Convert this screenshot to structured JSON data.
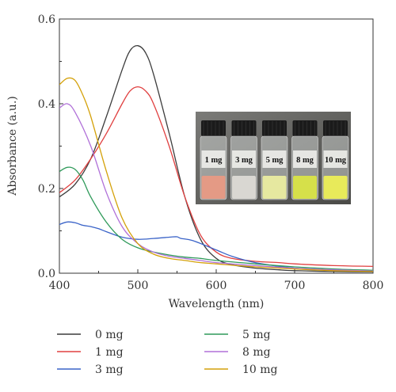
{
  "chart_data": {
    "type": "line",
    "xlabel": "Wavelength (nm)",
    "ylabel": "Absorbance (a.u.)",
    "xlim": [
      400,
      800
    ],
    "ylim": [
      0.0,
      0.6
    ],
    "xticks": [
      "400",
      "500",
      "600",
      "700",
      "800"
    ],
    "yticks": [
      "0.0",
      "0.2",
      "0.4",
      "0.6"
    ],
    "grid": false,
    "legend_position": "bottom",
    "series": [
      {
        "name": "0 mg",
        "color": "#3c3c3c",
        "x": [
          400,
          420,
          440,
          460,
          480,
          490,
          500,
          510,
          520,
          540,
          560,
          580,
          600,
          620,
          650,
          680,
          700,
          750,
          800
        ],
        "y": [
          0.18,
          0.21,
          0.27,
          0.37,
          0.48,
          0.525,
          0.537,
          0.52,
          0.47,
          0.33,
          0.18,
          0.08,
          0.035,
          0.02,
          0.012,
          0.008,
          0.006,
          0.004,
          0.003
        ]
      },
      {
        "name": "1 mg",
        "color": "#e04040",
        "x": [
          400,
          420,
          440,
          460,
          480,
          490,
          500,
          510,
          520,
          540,
          560,
          580,
          600,
          620,
          650,
          680,
          700,
          750,
          800
        ],
        "y": [
          0.19,
          0.22,
          0.27,
          0.33,
          0.4,
          0.43,
          0.44,
          0.43,
          0.4,
          0.3,
          0.18,
          0.09,
          0.05,
          0.035,
          0.028,
          0.025,
          0.022,
          0.018,
          0.016
        ]
      },
      {
        "name": "3 mg",
        "color": "#3a63c8",
        "x": [
          400,
          410,
          420,
          430,
          440,
          450,
          460,
          480,
          500,
          520,
          540,
          550,
          555,
          570,
          600,
          620,
          650,
          700,
          750,
          800
        ],
        "y": [
          0.115,
          0.121,
          0.119,
          0.113,
          0.11,
          0.105,
          0.098,
          0.085,
          0.08,
          0.082,
          0.085,
          0.086,
          0.082,
          0.077,
          0.055,
          0.04,
          0.025,
          0.012,
          0.007,
          0.004
        ]
      },
      {
        "name": "5 mg",
        "color": "#2f9a5a",
        "x": [
          400,
          410,
          420,
          430,
          440,
          460,
          480,
          500,
          520,
          540,
          560,
          580,
          600,
          650,
          700,
          750,
          800
        ],
        "y": [
          0.24,
          0.25,
          0.245,
          0.22,
          0.18,
          0.12,
          0.08,
          0.06,
          0.05,
          0.043,
          0.038,
          0.035,
          0.03,
          0.022,
          0.015,
          0.01,
          0.007
        ]
      },
      {
        "name": "8 mg",
        "color": "#b070d8",
        "x": [
          400,
          410,
          420,
          440,
          460,
          480,
          500,
          520,
          540,
          560,
          580,
          600,
          650,
          700,
          750,
          800
        ],
        "y": [
          0.39,
          0.4,
          0.38,
          0.3,
          0.19,
          0.11,
          0.07,
          0.05,
          0.04,
          0.035,
          0.03,
          0.025,
          0.018,
          0.012,
          0.008,
          0.005
        ]
      },
      {
        "name": "10 mg",
        "color": "#d4a10a",
        "x": [
          400,
          410,
          420,
          430,
          440,
          460,
          480,
          500,
          520,
          540,
          560,
          580,
          600,
          650,
          700,
          750,
          800
        ],
        "y": [
          0.445,
          0.46,
          0.455,
          0.42,
          0.37,
          0.24,
          0.13,
          0.07,
          0.045,
          0.035,
          0.03,
          0.025,
          0.022,
          0.015,
          0.01,
          0.006,
          0.004
        ]
      }
    ],
    "inset_photo": {
      "vials": [
        {
          "label": "1 mg",
          "liquid_color": "#e49a85"
        },
        {
          "label": "3 mg",
          "liquid_color": "#d9d7d2"
        },
        {
          "label": "5 mg",
          "liquid_color": "#e6e8a0"
        },
        {
          "label": "8 mg",
          "liquid_color": "#d6e04a"
        },
        {
          "label": "10 mg",
          "liquid_color": "#e8ea5a"
        }
      ]
    }
  }
}
